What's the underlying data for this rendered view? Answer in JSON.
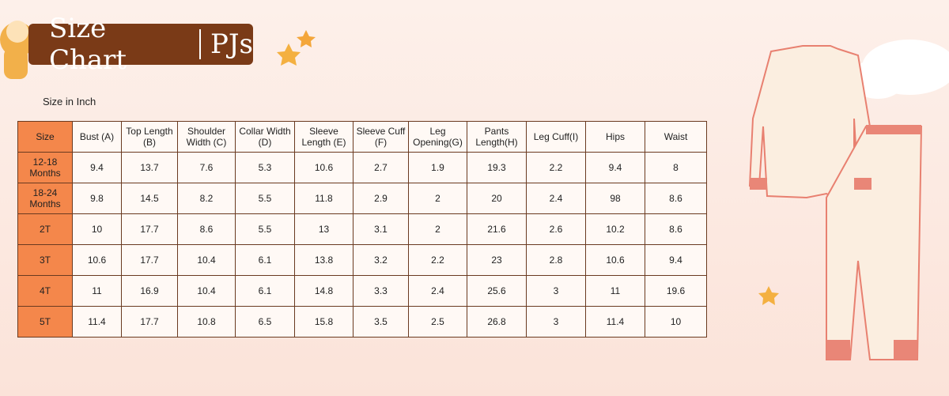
{
  "header": {
    "title": "Size Chart",
    "subtitle": "PJs"
  },
  "unit_note": "Size in Inch",
  "table": {
    "columns": [
      "Size",
      "Bust (A)",
      "Top Length (B)",
      "Shoulder Width (C)",
      "Collar Width (D)",
      "Sleeve Length (E)",
      "Sleeve Cuff (F)",
      "Leg Opening(G)",
      "Pants Length(H)",
      "Leg Cuff(I)",
      "Hips",
      "Waist"
    ],
    "rows": [
      [
        "12-18 Months",
        9.4,
        13.7,
        7.6,
        5.3,
        10.6,
        2.7,
        1.9,
        19.3,
        2.2,
        9.4,
        8
      ],
      [
        "18-24 Months",
        9.8,
        14.5,
        8.2,
        5.5,
        11.8,
        2.9,
        2,
        20,
        2.4,
        98,
        8.6
      ],
      [
        "2T",
        10,
        17.7,
        8.6,
        5.5,
        13,
        3.1,
        2,
        21.6,
        2.6,
        10.2,
        8.6
      ],
      [
        "3T",
        10.6,
        17.7,
        10.4,
        6.1,
        13.8,
        3.2,
        2.2,
        23,
        2.8,
        10.6,
        9.4
      ],
      [
        "4T",
        11,
        16.9,
        10.4,
        6.1,
        14.8,
        3.3,
        2.4,
        25.6,
        3,
        11,
        19.6
      ],
      [
        "5T",
        11.4,
        17.7,
        10.8,
        6.5,
        15.8,
        3.5,
        2.5,
        26.8,
        3,
        11.4,
        10
      ]
    ]
  }
}
